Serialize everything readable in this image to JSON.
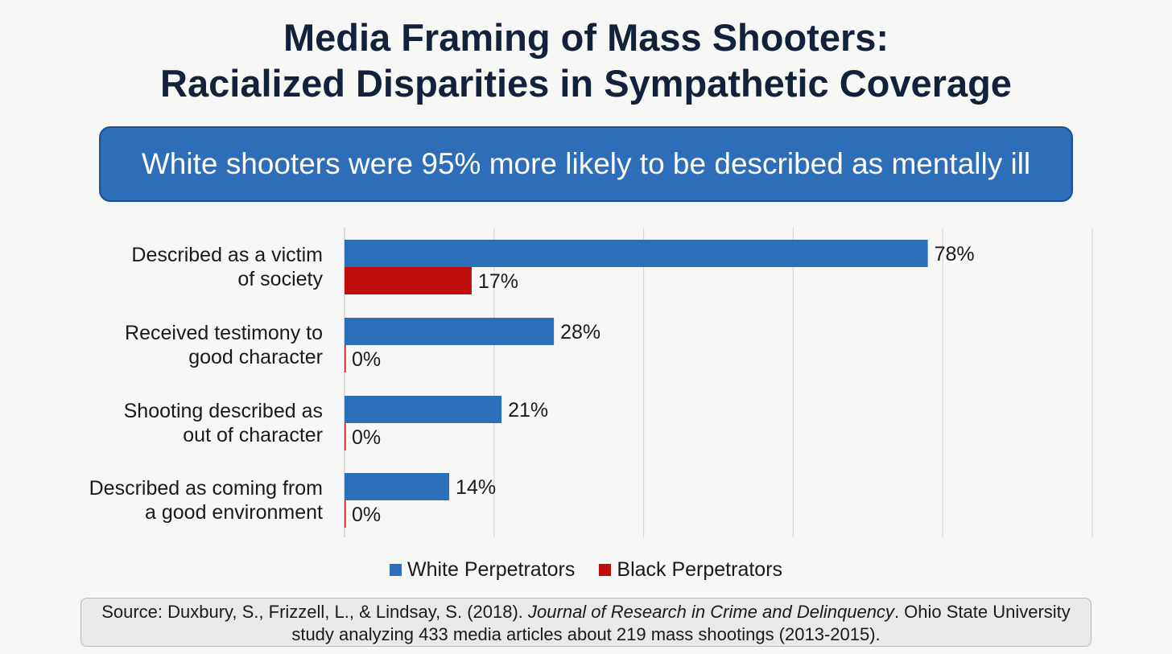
{
  "title_line1": "Media Framing of Mass Shooters:",
  "title_line2": "Racialized Disparities in Sympathetic Coverage",
  "banner_text": "White shooters were 95% more likely to be described as mentally ill",
  "colors": {
    "white_series": "#2b6fba",
    "black_series": "#c00d0d",
    "banner": "#2e6db8",
    "title": "#14213a"
  },
  "chart_data": {
    "type": "bar",
    "orientation": "horizontal",
    "categories": [
      [
        "Described as a victim",
        "of society"
      ],
      [
        "Received testimony to",
        "good character"
      ],
      [
        "Shooting described as",
        "out of character"
      ],
      [
        "Described as coming from",
        "a good environment"
      ]
    ],
    "series": [
      {
        "name": "White Perpetrators",
        "values": [
          78,
          28,
          21,
          14
        ],
        "labels": [
          "78%",
          "28%",
          "21%",
          "14%"
        ]
      },
      {
        "name": "Black Perpetrators",
        "values": [
          17,
          0,
          0,
          0
        ],
        "labels": [
          "17%",
          "0%",
          "0%",
          "0%"
        ]
      }
    ],
    "xlim": [
      0,
      100
    ],
    "grid": true,
    "legend": "bottom-center"
  },
  "legend": {
    "white": "White Perpetrators",
    "black": "Black Perpetrators"
  },
  "source": {
    "prefix": "Source: Duxbury, S., Frizzell, L., & Lindsay, S. (2018). ",
    "journal": "Journal of Research in Crime and Delinquency",
    "suffix": ". Ohio State University study analyzing 433 media articles about 219 mass shootings (2013-2015)."
  }
}
